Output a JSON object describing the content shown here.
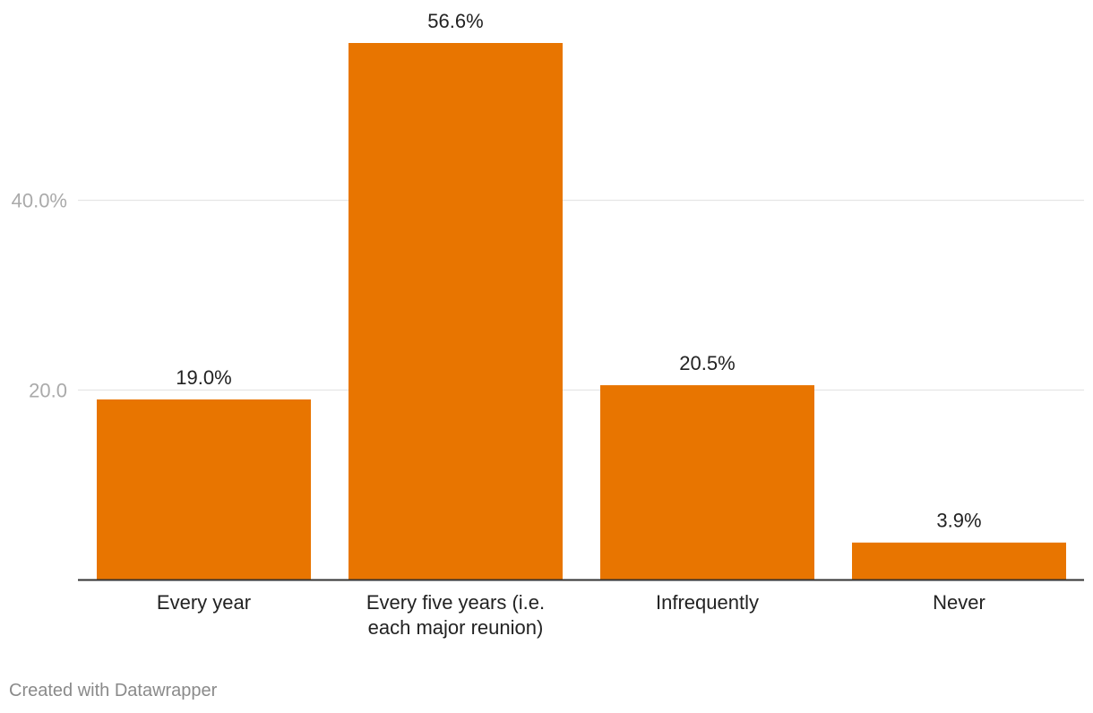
{
  "chart_data": {
    "type": "bar",
    "categories": [
      "Every year",
      "Every five years (i.e. each major reunion)",
      "Infrequently",
      "Never"
    ],
    "category_lines": [
      [
        "Every year"
      ],
      [
        "Every five years (i.e.",
        "each major reunion)"
      ],
      [
        "Infrequently"
      ],
      [
        "Never"
      ]
    ],
    "values": [
      19.0,
      56.6,
      20.5,
      3.9
    ],
    "value_labels": [
      "19.0%",
      "56.6%",
      "20.5%",
      "3.9%"
    ],
    "y_ticks": [
      {
        "value": 20,
        "label": "20.0"
      },
      {
        "value": 40,
        "label": "40.0%"
      }
    ],
    "ylim": [
      0,
      56.6
    ],
    "grid": true,
    "legend": "none",
    "bar_color": "#e87500",
    "title": "",
    "xlabel": "",
    "ylabel": ""
  },
  "footer": {
    "credit": "Created with Datawrapper"
  }
}
